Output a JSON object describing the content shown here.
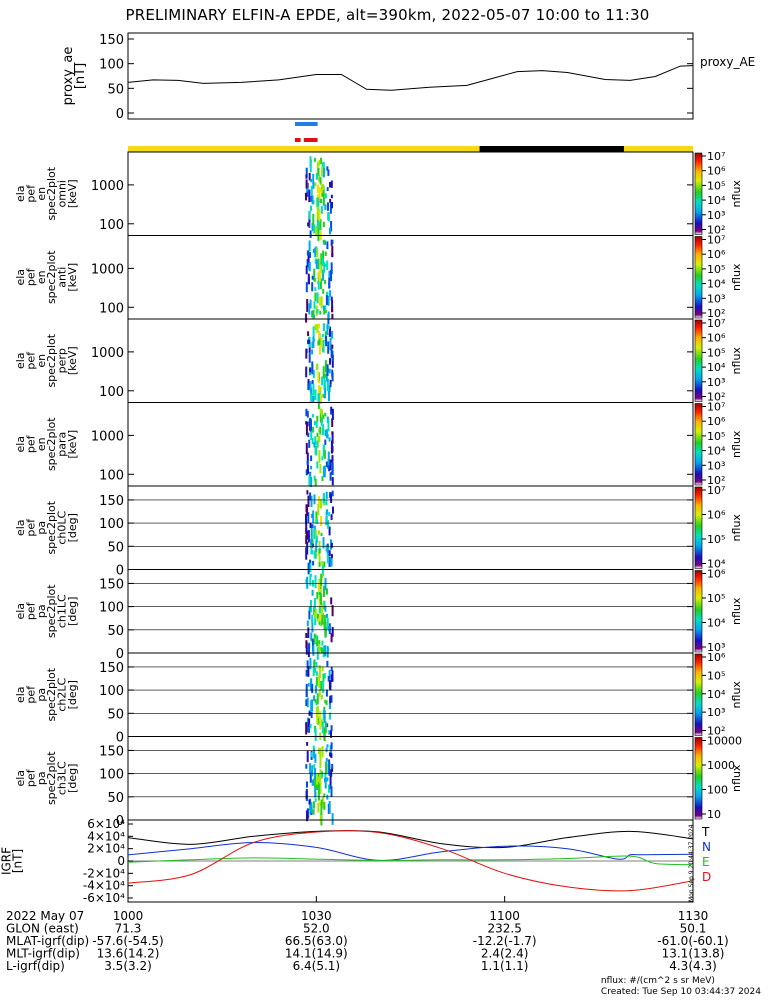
{
  "title": "PRELIMINARY ELFIN-A EPDE, alt=390km, 2022-05-07 10:00 to 11:30",
  "colors": {
    "proxy_ae_line": "#000000",
    "indicator_blue": "#1f7fe0",
    "indicator_red": "#e01010",
    "sunlight": "#f5d816",
    "eclipse": "#000000",
    "igrf_T": "#000000",
    "igrf_N": "#1030d0",
    "igrf_E": "#20c020",
    "igrf_D": "#e01010"
  },
  "proxy_ae": {
    "ylabel": "proxy_ae\n[nT]",
    "legend": "proxy_AE",
    "ylim": [
      0,
      150
    ],
    "yticks": [
      "0",
      "50",
      "100",
      "150"
    ]
  },
  "spectrogram_panels": [
    {
      "ylabel": [
        "ela",
        "pef",
        "en",
        "spec2plot",
        "omni",
        "[keV]"
      ],
      "scale": "log",
      "ylim": [
        50,
        7000
      ],
      "yticks": [
        "100",
        "1000"
      ],
      "cbar_ticks": [
        "10²",
        "10³",
        "10⁴",
        "10⁵",
        "10⁶",
        "10⁷"
      ],
      "cbar_label": "nflux"
    },
    {
      "ylabel": [
        "ela",
        "pef",
        "en",
        "spec2plot",
        "anti",
        "[keV]"
      ],
      "scale": "log",
      "ylim": [
        50,
        7000
      ],
      "yticks": [
        "100",
        "1000"
      ],
      "cbar_ticks": [
        "10²",
        "10³",
        "10⁴",
        "10⁵",
        "10⁶",
        "10⁷"
      ],
      "cbar_label": "nflux"
    },
    {
      "ylabel": [
        "ela",
        "pef",
        "en",
        "spec2plot",
        "perp",
        "[keV]"
      ],
      "scale": "log",
      "ylim": [
        50,
        7000
      ],
      "yticks": [
        "100",
        "1000"
      ],
      "cbar_ticks": [
        "10²",
        "10³",
        "10⁴",
        "10⁵",
        "10⁶",
        "10⁷"
      ],
      "cbar_label": "nflux"
    },
    {
      "ylabel": [
        "ela",
        "pef",
        "en",
        "spec2plot",
        "para",
        "[keV]"
      ],
      "scale": "log",
      "ylim": [
        50,
        7000
      ],
      "yticks": [
        "100",
        "1000"
      ],
      "cbar_ticks": [
        "10²",
        "10³",
        "10⁴",
        "10⁵",
        "10⁶",
        "10⁷"
      ],
      "cbar_label": "nflux"
    },
    {
      "ylabel": [
        "ela",
        "pef",
        "pa",
        "spec2plot",
        "ch0LC",
        "[deg]"
      ],
      "scale": "linear",
      "ylim": [
        0,
        180
      ],
      "yticks": [
        "0",
        "50",
        "100",
        "150"
      ],
      "cbar_ticks": [
        "10⁴",
        "10⁵",
        "10⁶",
        "10⁷"
      ],
      "cbar_label": "nflux"
    },
    {
      "ylabel": [
        "ela",
        "pef",
        "pa",
        "spec2plot",
        "ch1LC",
        "[deg]"
      ],
      "scale": "linear",
      "ylim": [
        0,
        180
      ],
      "yticks": [
        "0",
        "50",
        "100",
        "150"
      ],
      "cbar_ticks": [
        "10³",
        "10⁴",
        "10⁵",
        "10⁶"
      ],
      "cbar_label": "nflux"
    },
    {
      "ylabel": [
        "ela",
        "pef",
        "pa",
        "spec2plot",
        "ch2LC",
        "[deg]"
      ],
      "scale": "linear",
      "ylim": [
        0,
        180
      ],
      "yticks": [
        "0",
        "50",
        "100",
        "150"
      ],
      "cbar_ticks": [
        "10²",
        "10³",
        "10⁴",
        "10⁵",
        "10⁶"
      ],
      "cbar_label": "nflux"
    },
    {
      "ylabel": [
        "ela",
        "pef",
        "pa",
        "spec2plot",
        "ch3LC",
        "[deg]"
      ],
      "scale": "linear",
      "ylim": [
        0,
        180
      ],
      "yticks": [
        "0",
        "50",
        "100",
        "150"
      ],
      "cbar_ticks": [
        "10",
        "100",
        "1000",
        "10000"
      ],
      "cbar_label": "nflux"
    }
  ],
  "igrf": {
    "ylabel": "IGRF\n[nT]",
    "ylim": [
      -60000,
      60000
    ],
    "yticks": [
      "-6×10⁴",
      "-4×10⁴",
      "-2×10⁴",
      "0",
      "2×10⁴",
      "4×10⁴",
      "6×10⁴"
    ],
    "legend": [
      "T",
      "N",
      "E",
      "D"
    ],
    "side_stamp": "Mon Sep  9 20:44:37 2024"
  },
  "chart_data": {
    "type": "line",
    "x_unit": "minutes after 2022-05-07 10:00 UT",
    "xlim": [
      0,
      90
    ],
    "proxy_ae_series": {
      "x": [
        0,
        4,
        8,
        12,
        18,
        24,
        30,
        34,
        38,
        42,
        48,
        54,
        58,
        62,
        66,
        70,
        76,
        80,
        84,
        88,
        90
      ],
      "y": [
        62,
        67,
        66,
        60,
        62,
        67,
        78,
        78,
        48,
        46,
        52,
        56,
        70,
        84,
        86,
        82,
        68,
        66,
        74,
        95,
        96
      ]
    },
    "igrf_series": [
      {
        "name": "T",
        "x": [
          0,
          10,
          20,
          30,
          40,
          50,
          60,
          70,
          80,
          90
        ],
        "y": [
          38000,
          27000,
          40000,
          48000,
          47000,
          28000,
          22000,
          38000,
          48000,
          36000
        ]
      },
      {
        "name": "N",
        "x": [
          0,
          10,
          20,
          30,
          40,
          50,
          60,
          70,
          78,
          80,
          82,
          90
        ],
        "y": [
          10000,
          20000,
          30000,
          22000,
          1000,
          15000,
          24000,
          20000,
          3000,
          10000,
          10000,
          11000
        ]
      },
      {
        "name": "E",
        "x": [
          0,
          10,
          20,
          30,
          40,
          50,
          60,
          70,
          80,
          84,
          90
        ],
        "y": [
          -2000,
          2000,
          5000,
          3000,
          1000,
          2000,
          2000,
          4000,
          8000,
          -4000,
          -6000
        ]
      },
      {
        "name": "D",
        "x": [
          0,
          10,
          20,
          30,
          40,
          50,
          60,
          70,
          80,
          90
        ],
        "y": [
          -36000,
          -22000,
          30000,
          47000,
          46000,
          20000,
          -20000,
          -42000,
          -48000,
          -32000
        ]
      }
    ],
    "x_ticks": [
      "1000",
      "1030",
      "1100",
      "1130"
    ]
  },
  "orbit_bars": {
    "sunlight_ranges": [
      [
        0,
        56
      ],
      [
        79,
        90
      ]
    ],
    "eclipse_ranges": [
      [
        56,
        79
      ]
    ],
    "blue_range": [
      26.6,
      30.2
    ],
    "red_segments": [
      [
        26.6,
        27.5
      ],
      [
        28.0,
        30.2
      ]
    ]
  },
  "ephemeris": {
    "rows": [
      {
        "label": "2022 May 07",
        "values": [
          "1000",
          "1030",
          "1100",
          "1130"
        ]
      },
      {
        "label": "GLON (east)",
        "values": [
          "71.3",
          "52.0",
          "232.5",
          "50.1"
        ]
      },
      {
        "label": "MLAT-igrf(dip)",
        "values": [
          "-57.6(-54.5)",
          "66.5(63.0)",
          "-12.2(-1.7)",
          "-61.0(-60.1)"
        ]
      },
      {
        "label": "MLT-igrf(dip)",
        "values": [
          "13.6(14.2)",
          "14.1(14.9)",
          "2.4(2.4)",
          "13.1(13.8)"
        ]
      },
      {
        "label": "L-igrf(dip)",
        "values": [
          "3.5(3.2)",
          "6.4(5.1)",
          "1.1(1.1)",
          "4.3(4.3)"
        ]
      }
    ]
  },
  "footer": {
    "units": "nflux: #/(cm^2 s sr MeV)",
    "created": "Created: Tue Sep 10 03:44:37 2024"
  }
}
